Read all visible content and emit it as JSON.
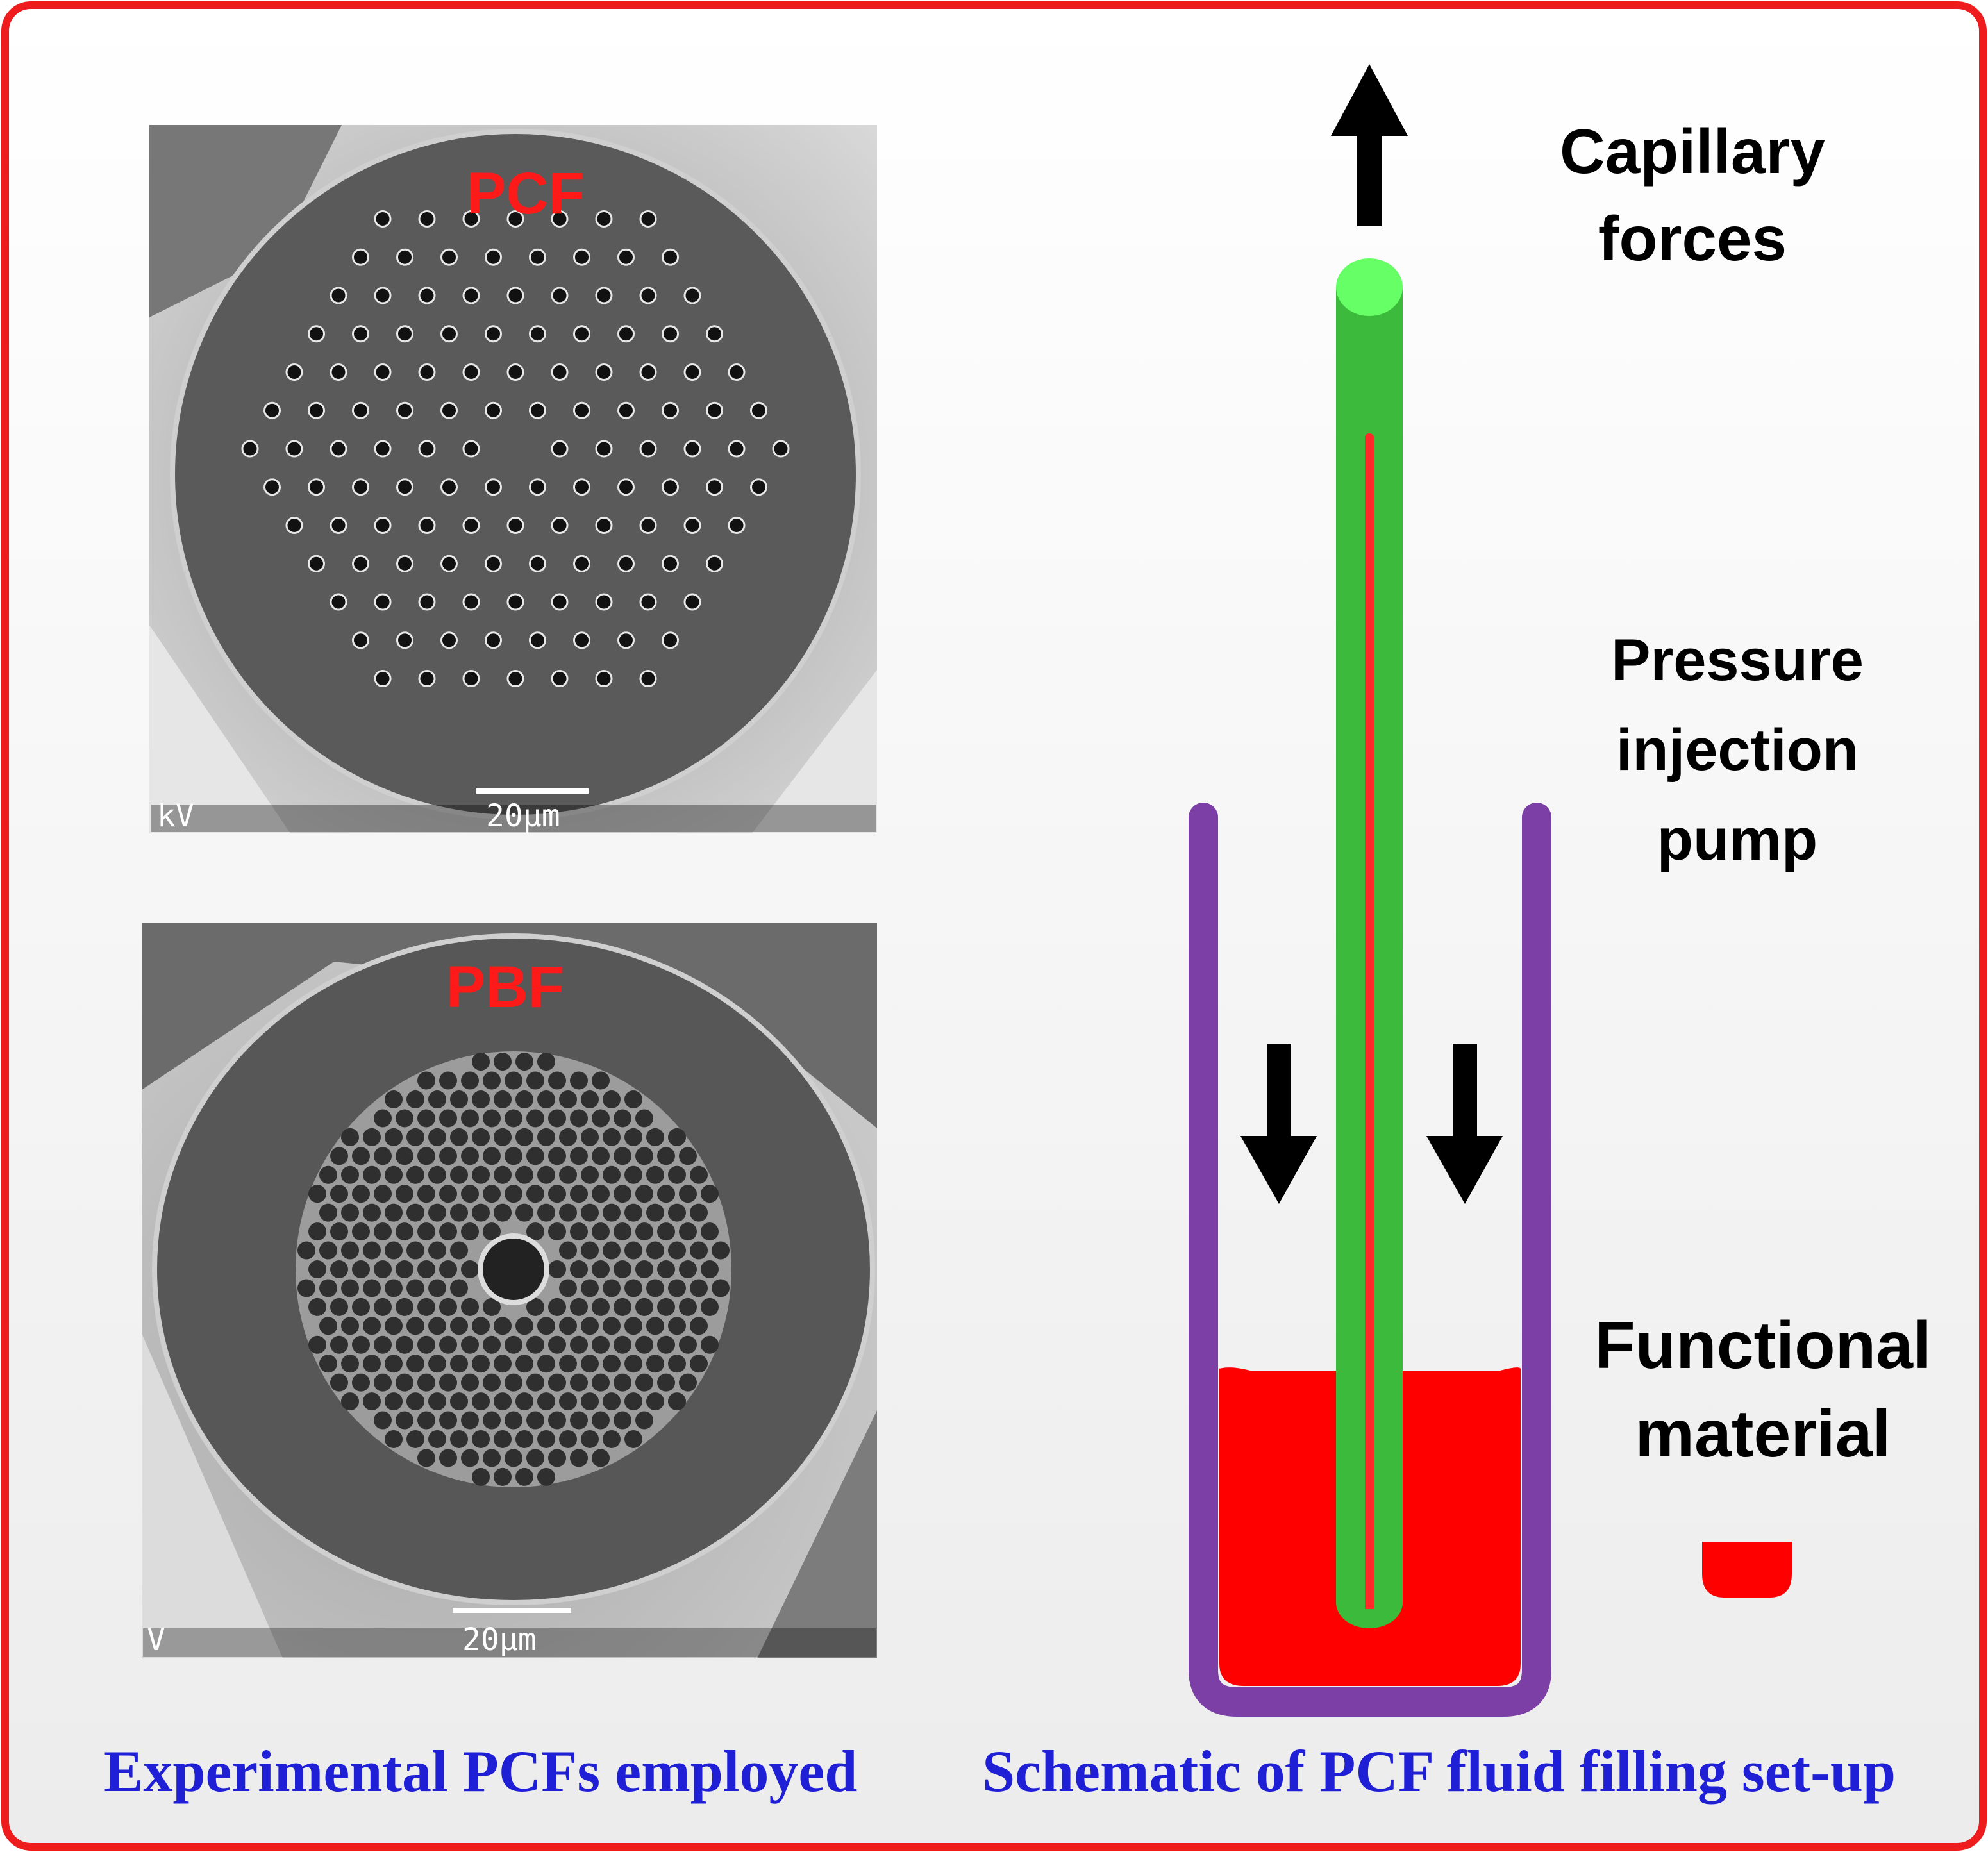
{
  "panels": {
    "pcf": {
      "tag": "PCF",
      "scale": "20µm",
      "corner": "kV"
    },
    "pbf": {
      "tag": "PBF",
      "scale": "20µm",
      "corner": "V"
    }
  },
  "schematic": {
    "capillary": "Capillary\nforces",
    "pressure": "Pressure\ninjection\npump",
    "functional": "Functional\nmaterial"
  },
  "captions": {
    "left": "Experimental PCFs employed",
    "right": "Schematic of PCF fluid filling set-up"
  },
  "colors": {
    "frame": "#ee1c1c",
    "fiber": "#3cba3c",
    "fiber_tip": "#66ff66",
    "container": "#7b3fa6",
    "fluid": "#ff0000",
    "arrow": "#000000",
    "caption": "#1f1fd6"
  }
}
